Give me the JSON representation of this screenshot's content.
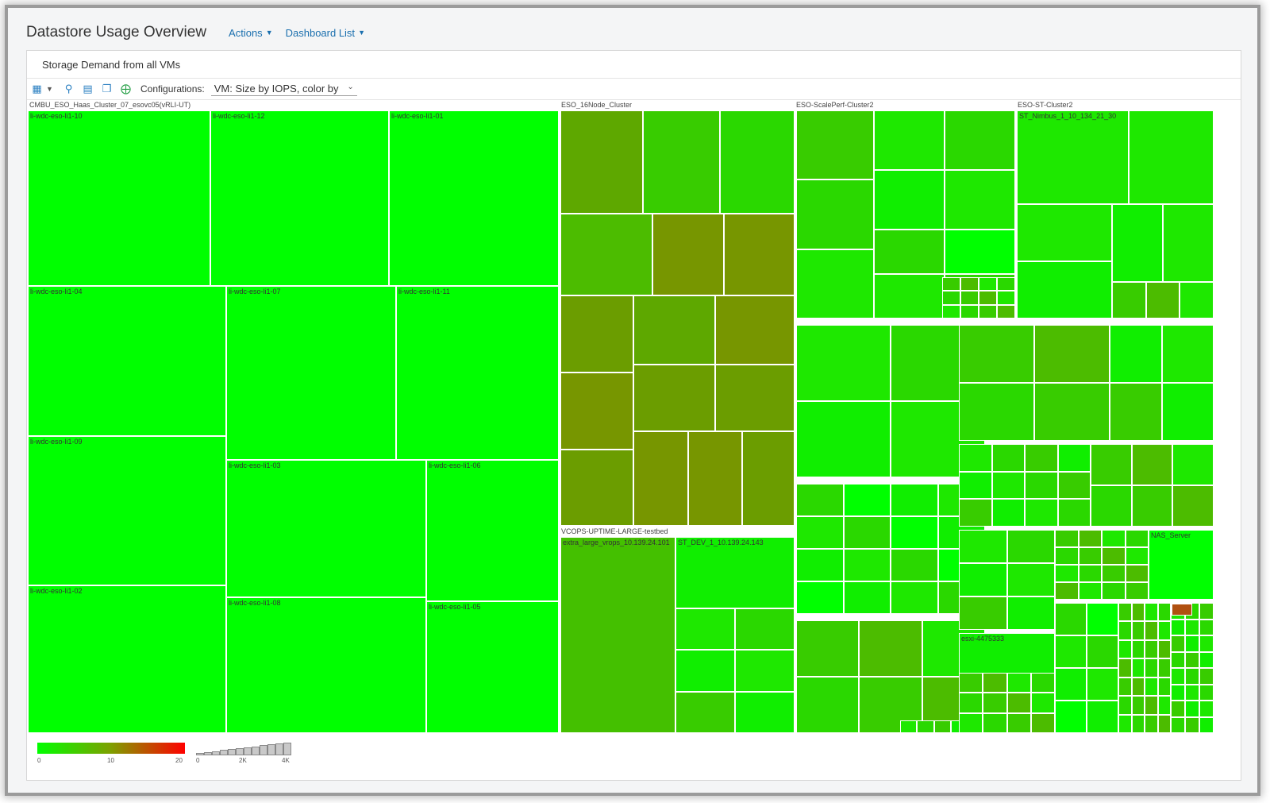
{
  "header": {
    "title": "Datastore Usage Overview",
    "actions_label": "Actions",
    "dashboard_list_label": "Dashboard List"
  },
  "panel": {
    "title": "Storage Demand from all VMs",
    "toolbar": {
      "config_label": "Configurations:",
      "config_value": "VM: Size by IOPS, color by",
      "icons": [
        "hierarchy-icon",
        "zoom-icon",
        "chart-icon",
        "copy-icon",
        "fit-screen-icon"
      ]
    }
  },
  "treemap": {
    "groups": [
      "CMBU_ESO_Haas_Cluster_07_esovc05(vRLI-UT)",
      "ESO_16Node_Cluster",
      "ESO-ScalePerf-Cluster2",
      "ESO-ST-Cluster2",
      "VCOPS-UPTIME-LARGE-testbed"
    ],
    "labels": [
      "li-wdc-eso-li1-10",
      "li-wdc-eso-li1-12",
      "li-wdc-eso-li1-01",
      "li-wdc-eso-li1-04",
      "li-wdc-eso-li1-07",
      "li-wdc-eso-li1-11",
      "li-wdc-eso-li1-09",
      "li-wdc-eso-li1-03",
      "li-wdc-eso-li1-06",
      "li-wdc-eso-li1-02",
      "li-wdc-eso-li1-08",
      "li-wdc-eso-li1-05",
      "ST_Nimbus_1_10_134_21_30",
      "extra_large_vrops_10.139.24.101",
      "ST_DEV_1_10.139.24.143",
      "NAS_Server",
      "esxi-4475333"
    ]
  },
  "legend": {
    "color_ticks": [
      "0",
      "10",
      "20"
    ],
    "size_ticks": [
      "0",
      "2K",
      "4K"
    ],
    "colors": {
      "low": "#00ff00",
      "mid": "#7f9f00",
      "high": "#ff0000"
    }
  }
}
